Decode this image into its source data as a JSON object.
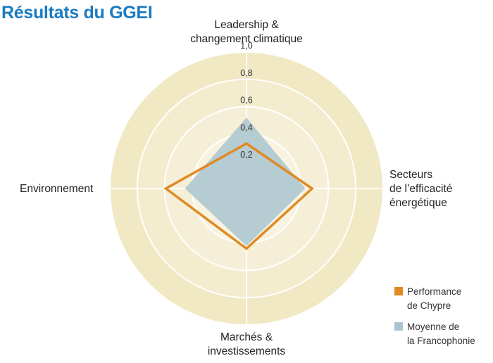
{
  "chart_data": {
    "type": "radar",
    "title": "Résultats du GGEI",
    "axes": [
      {
        "label_lines": [
          "Leadership &",
          "changement climatique"
        ]
      },
      {
        "label_lines": [
          "Secteurs",
          "de l’efficacité",
          "énergétique"
        ]
      },
      {
        "label_lines": [
          "Marchés &",
          "investissements"
        ]
      },
      {
        "label_lines": [
          "Environnement"
        ]
      }
    ],
    "r_range": [
      0,
      1.0
    ],
    "r_ticks": [
      "0,2",
      "0,4",
      "0,6",
      "0,8",
      "1,0"
    ],
    "r_tick_values": [
      0.2,
      0.4,
      0.6,
      0.8,
      1.0
    ],
    "series": [
      {
        "name": "Performance de Chypre",
        "values": [
          0.33,
          0.48,
          0.44,
          0.59
        ],
        "color": "#e08a23",
        "style": "outline"
      },
      {
        "name": "Moyenne de la Francophonie",
        "values": [
          0.52,
          0.43,
          0.42,
          0.45
        ],
        "color": "#a9c4cf",
        "style": "fill"
      }
    ],
    "legend": [
      {
        "lines": [
          "Performance",
          "de Chypre"
        ],
        "color": "#e08a23"
      },
      {
        "lines": [
          "Moyenne de",
          "la Francophonie"
        ],
        "color": "#a9c4cf"
      }
    ],
    "legend_position": "bottom-right",
    "colors": {
      "background_disc": "#f1e8c4",
      "ring_fills": [
        "#f1e8c4",
        "#f3ecce",
        "#f5efd7",
        "#f8f3e1",
        "#faf7ea"
      ],
      "grid": "#ffffff",
      "title": "#1c7bbf"
    }
  }
}
